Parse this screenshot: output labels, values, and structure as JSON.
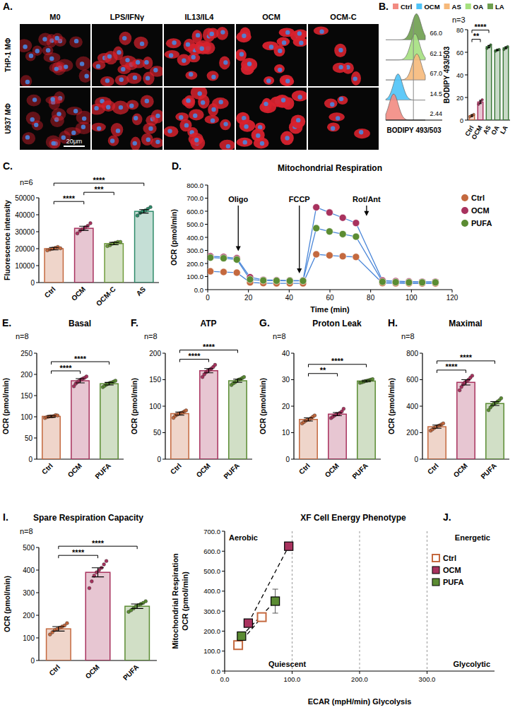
{
  "panel_a": {
    "letter": "A.",
    "columns": [
      "M0",
      "LPS/IFNγ",
      "IL13/IL4",
      "OCM",
      "OCM-C"
    ],
    "rows": [
      "THP-1 MΦ",
      "U937 MΦ"
    ],
    "scale_bar": "20μm"
  },
  "chart_data": [
    {
      "type": "ridge",
      "panel": "B.",
      "categories": [
        "LA",
        "OA",
        "AS",
        "OCM",
        "Ctrl"
      ],
      "values": [
        66,
        62.1,
        67,
        14.5,
        2.44
      ],
      "value_labels": [
        "66.0",
        "62.1",
        "67.0",
        "14.5",
        "2.44"
      ],
      "colors": [
        "#6e9f4e",
        "#a5e07f",
        "#f6b97a",
        "#4fc3f7",
        "#f28b82"
      ],
      "xlabel": "BODIPY 493/503",
      "data_labels": true,
      "tick_labels": false,
      "legend": "top"
    },
    {
      "type": "bar",
      "subtitle": "n=3",
      "ylabel": "BODIPY 493/503",
      "categories": [
        "Ctrl",
        "OCM",
        "AS",
        "OA",
        "LA"
      ],
      "values": [
        4,
        16,
        65,
        62,
        64
      ],
      "errors": [
        0.8,
        1.5,
        1,
        0.5,
        0.8
      ],
      "points": [
        [
          3,
          4,
          5
        ],
        [
          14,
          16,
          18
        ],
        [
          63.5,
          65,
          66.5
        ],
        [
          61,
          62,
          62.5
        ],
        [
          62.5,
          64,
          65
        ]
      ],
      "colors": [
        "#c4693f",
        "#a8325e",
        "#3d7a3a",
        "#3d7a3a",
        "#3d7a3a"
      ],
      "ylim": [
        0,
        80
      ],
      "yticks": [
        0,
        20,
        40,
        60,
        80
      ],
      "significance": [
        {
          "from": 0,
          "to": 1,
          "label": "**"
        },
        {
          "from": 0,
          "to": 2,
          "label": "****"
        }
      ]
    },
    {
      "type": "bar",
      "panel": "C.",
      "subtitle": "n=6",
      "ylabel": "Fluorescence intensity",
      "categories": [
        "Ctrl",
        "OCM",
        "OCM-C",
        "AS"
      ],
      "values": [
        20000,
        32000,
        23000,
        42000
      ],
      "errors": [
        700,
        1200,
        700,
        1000
      ],
      "points": [
        [
          19000,
          19500,
          20000,
          20500,
          21000,
          20200
        ],
        [
          29000,
          30500,
          31500,
          32500,
          33500,
          35000
        ],
        [
          21500,
          22000,
          23000,
          23500,
          24000,
          24000
        ],
        [
          39500,
          41000,
          42000,
          42500,
          43500,
          44500
        ]
      ],
      "colors": [
        "#c4693f",
        "#a8325e",
        "#6f9b3c",
        "#2e8b6a"
      ],
      "ylim": [
        0,
        50000
      ],
      "yticks": [
        0,
        10000,
        20000,
        30000,
        40000,
        50000
      ],
      "significance": [
        {
          "from": 0,
          "to": 1,
          "label": "****"
        },
        {
          "from": 1,
          "to": 2,
          "label": "***"
        },
        {
          "from": 0,
          "to": 3,
          "label": "****"
        }
      ]
    },
    {
      "type": "line",
      "panel": "D.",
      "title": "Mitochondrial Respiration",
      "xlabel": "Time (min)",
      "ylabel": "OCR (pmol/min)",
      "x": [
        1.3,
        7.8,
        14.3,
        20.8,
        27.3,
        33.8,
        40.3,
        46.8,
        53.3,
        59.8,
        66.3,
        72.8,
        85.8,
        92.3,
        98.8,
        105.3,
        111.8
      ],
      "series": [
        {
          "name": "Ctrl",
          "color": "#c4693f",
          "marker": "circle",
          "line_style": "solid",
          "values": [
            140,
            135,
            130,
            55,
            50,
            48,
            48,
            48,
            270,
            262,
            255,
            250,
            50,
            48,
            47,
            47,
            47
          ]
        },
        {
          "name": "OCM",
          "color": "#a8325e",
          "marker": "circle",
          "line_style": "solid",
          "values": [
            255,
            250,
            240,
            95,
            75,
            72,
            70,
            70,
            630,
            590,
            550,
            510,
            70,
            65,
            62,
            60,
            60
          ]
        },
        {
          "name": "PUFA",
          "color": "#5b8c33",
          "marker": "circle",
          "line_style": "solid",
          "values": [
            245,
            240,
            230,
            78,
            70,
            68,
            67,
            67,
            470,
            445,
            425,
            405,
            60,
            57,
            55,
            55,
            55
          ]
        }
      ],
      "xlim": [
        0,
        120
      ],
      "xticks": [
        0,
        20,
        40,
        60,
        80,
        100,
        120
      ],
      "ylim": [
        0,
        800
      ],
      "yticks": [
        {
          "value": 0,
          "label": "0.0"
        },
        {
          "value": 100,
          "label": "100.0"
        },
        {
          "value": 200,
          "label": "200.0"
        },
        {
          "value": 300,
          "label": "300.0"
        },
        {
          "value": 400,
          "label": "400.0"
        },
        {
          "value": 500,
          "label": "500.0"
        },
        {
          "value": 600,
          "label": "600.0"
        },
        {
          "value": 700,
          "label": "700.0"
        },
        {
          "value": 800,
          "label": "800.0"
        }
      ],
      "annotations": [
        {
          "text": "Oligo",
          "x": 15
        },
        {
          "text": "FCCP",
          "x": 45
        },
        {
          "text": "Rot/Ant",
          "x": 78
        }
      ],
      "legend": "right"
    },
    {
      "type": "bar",
      "panel": "E.",
      "title": "Basal",
      "subtitle": "n=8",
      "ylabel": "OCR (pmol/min)",
      "categories": [
        "Ctrl",
        "OCM",
        "PUFA"
      ],
      "values": [
        101,
        185,
        178
      ],
      "errors": [
        2,
        5,
        3
      ],
      "points": [
        [
          97,
          99,
          100,
          101,
          101,
          102,
          104,
          103
        ],
        [
          172,
          178,
          182,
          185,
          188,
          190,
          192,
          195
        ],
        [
          170,
          173,
          176,
          178,
          180,
          181,
          183,
          185
        ]
      ],
      "colors": [
        "#c4693f",
        "#a8325e",
        "#5b8c33"
      ],
      "ylim": [
        0,
        250
      ],
      "yticks": [
        0,
        50,
        100,
        150,
        200,
        250
      ],
      "significance": [
        {
          "from": 0,
          "to": 1,
          "label": "****"
        },
        {
          "from": 0,
          "to": 2,
          "label": "****"
        }
      ]
    },
    {
      "type": "bar",
      "panel": "F.",
      "title": "ATP",
      "subtitle": "n=8",
      "ylabel": "OCR (pmol/min)",
      "categories": [
        "Ctrl",
        "OCM",
        "PUFA"
      ],
      "values": [
        86,
        167,
        148
      ],
      "errors": [
        3,
        4,
        3
      ],
      "points": [
        [
          78,
          82,
          84,
          86,
          87,
          88,
          90,
          92
        ],
        [
          155,
          160,
          164,
          167,
          169,
          171,
          174,
          178
        ],
        [
          140,
          143,
          145,
          148,
          150,
          151,
          153,
          155
        ]
      ],
      "colors": [
        "#c4693f",
        "#a8325e",
        "#5b8c33"
      ],
      "ylim": [
        0,
        200
      ],
      "yticks": [
        0,
        50,
        100,
        150,
        200
      ],
      "significance": [
        {
          "from": 0,
          "to": 1,
          "label": "****"
        },
        {
          "from": 0,
          "to": 2,
          "label": "****"
        }
      ]
    },
    {
      "type": "bar",
      "panel": "G.",
      "title": "Proton Leak",
      "subtitle": "n=8",
      "ylabel": "OCR (pmol/min)",
      "categories": [
        "Ctrl",
        "OCM",
        "PUFA"
      ],
      "values": [
        15,
        17,
        29.5
      ],
      "errors": [
        0.6,
        0.6,
        0.3
      ],
      "points": [
        [
          13.5,
          14,
          14.5,
          15,
          15,
          15.5,
          16,
          16.5
        ],
        [
          15.5,
          16,
          16.5,
          17,
          17,
          17.5,
          18,
          19
        ],
        [
          28.8,
          29,
          29.2,
          29.5,
          29.6,
          29.8,
          30,
          30.2
        ]
      ],
      "colors": [
        "#c4693f",
        "#a8325e",
        "#5b8c33"
      ],
      "ylim": [
        0,
        40
      ],
      "yticks": [
        0,
        10,
        20,
        30,
        40
      ],
      "significance": [
        {
          "from": 0,
          "to": 1,
          "label": "**"
        },
        {
          "from": 0,
          "to": 2,
          "label": "****"
        }
      ]
    },
    {
      "type": "bar",
      "panel": "H.",
      "title": "Maximal",
      "subtitle": "n=8",
      "ylabel": "OCR (pmol/min)",
      "categories": [
        "Ctrl",
        "OCM",
        "PUFA"
      ],
      "values": [
        245,
        580,
        420
      ],
      "errors": [
        12,
        20,
        15
      ],
      "points": [
        [
          215,
          225,
          235,
          245,
          250,
          255,
          262,
          270
        ],
        [
          520,
          545,
          565,
          580,
          590,
          600,
          615,
          630
        ],
        [
          370,
          390,
          405,
          420,
          425,
          435,
          445,
          460
        ]
      ],
      "colors": [
        "#c4693f",
        "#a8325e",
        "#5b8c33"
      ],
      "ylim": [
        0,
        800
      ],
      "yticks": [
        0,
        200,
        400,
        600,
        800
      ],
      "significance": [
        {
          "from": 0,
          "to": 1,
          "label": "****"
        },
        {
          "from": 0,
          "to": 2,
          "label": "****"
        }
      ]
    },
    {
      "type": "bar",
      "panel": "I.",
      "title": "Spare Respiration Capacity",
      "subtitle": "n=8",
      "ylabel": "OCR (pmol/min)",
      "categories": [
        "Ctrl",
        "OCM",
        "PUFA"
      ],
      "values": [
        140,
        390,
        240
      ],
      "errors": [
        10,
        20,
        10
      ],
      "points": [
        [
          115,
          125,
          135,
          140,
          145,
          150,
          155,
          165
        ],
        [
          320,
          350,
          375,
          390,
          400,
          410,
          425,
          440
        ],
        [
          215,
          222,
          230,
          240,
          245,
          250,
          255,
          262
        ]
      ],
      "colors": [
        "#c4693f",
        "#a8325e",
        "#5b8c33"
      ],
      "ylim": [
        0,
        500
      ],
      "yticks": [
        0,
        100,
        200,
        300,
        400,
        500
      ],
      "significance": [
        {
          "from": 0,
          "to": 1,
          "label": "****"
        },
        {
          "from": 0,
          "to": 2,
          "label": "****"
        }
      ]
    },
    {
      "type": "scatter",
      "panel": "J.",
      "title": "XF Cell Energy Phenotype",
      "xlabel": "ECAR (mpH/min) Glycolysis",
      "ylabel": [
        "Mitochondrial Respiration",
        "OCR (pmol/min)"
      ],
      "quadrant_labels": [
        "Aerobic",
        "Energetic",
        "Quiescent",
        "Glycolytic"
      ],
      "series": [
        {
          "name": "Ctrl",
          "color": "#c4693f",
          "marker": "square-open",
          "line_style": "dashed",
          "x": [
            20,
            55
          ],
          "values": [
            130,
            270
          ]
        },
        {
          "name": "OCM",
          "color": "#a8325e",
          "marker": "square",
          "line_style": "dashed",
          "x": [
            35,
            95
          ],
          "values": [
            240,
            625
          ]
        },
        {
          "name": "PUFA",
          "color": "#5b8c33",
          "marker": "square",
          "line_style": "dashed",
          "x": [
            25,
            75
          ],
          "values": [
            175,
            350
          ],
          "errors": [
            15,
            60
          ]
        }
      ],
      "xlim": [
        0,
        400
      ],
      "xticks": [
        {
          "value": 0,
          "label": "0.0"
        },
        {
          "value": 100,
          "label": "100.0"
        },
        {
          "value": 200,
          "label": "200.0"
        },
        {
          "value": 300,
          "label": "300.0"
        }
      ],
      "ylim": [
        0,
        700
      ],
      "yticks": [
        {
          "value": 0,
          "label": "0.0"
        },
        {
          "value": 100,
          "label": "100.0"
        },
        {
          "value": 200,
          "label": "200.0"
        },
        {
          "value": 300,
          "label": "300.0"
        },
        {
          "value": 400,
          "label": "400.0"
        },
        {
          "value": 500,
          "label": "500.0"
        },
        {
          "value": 600,
          "label": "600.0"
        },
        {
          "value": 700,
          "label": "700.0"
        }
      ],
      "grid": true,
      "legend": "right"
    }
  ]
}
